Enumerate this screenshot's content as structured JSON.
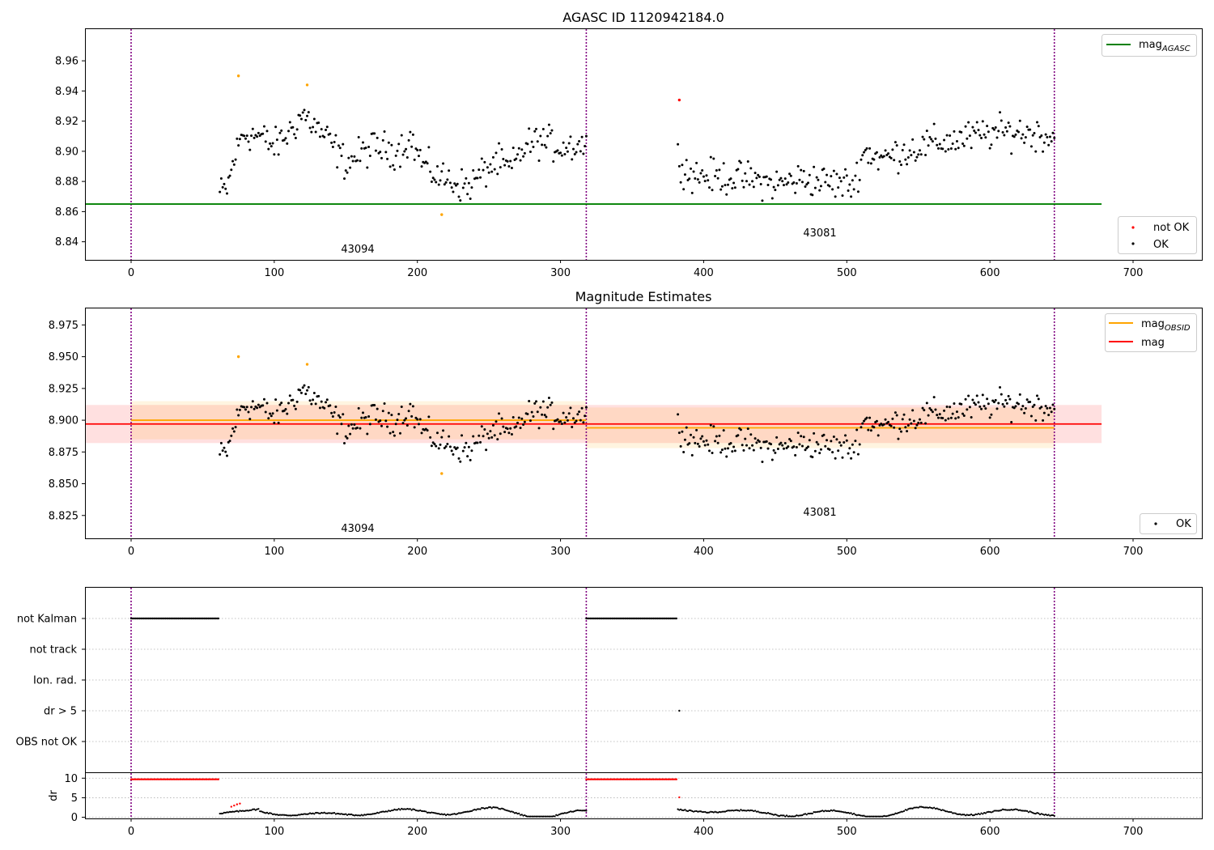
{
  "colors": {
    "ok": "#000000",
    "not_ok": "#ff0000",
    "suspect": "#ffa500",
    "mag_agasc": "#008000",
    "mag_obsid": "#ffa500",
    "mag": "#ff0000",
    "obs_boundary": "#800080",
    "grid": "#b0b0b0"
  },
  "chart_data": [
    {
      "type": "scatter",
      "panel": "top",
      "title": "AGASC ID 1120942184.0",
      "xlabel": "",
      "ylabel": "",
      "xlim": [
        -32,
        748
      ],
      "ylim": [
        8.828,
        8.981
      ],
      "xticks": [
        0,
        100,
        200,
        300,
        400,
        500,
        600,
        700
      ],
      "yticks": [
        8.84,
        8.86,
        8.88,
        8.9,
        8.92,
        8.94,
        8.96
      ],
      "ytick_labels": [
        "8.84",
        "8.86",
        "8.88",
        "8.90",
        "8.92",
        "8.94",
        "8.96"
      ],
      "obs_boundaries": [
        0,
        318,
        645
      ],
      "annotations": [
        {
          "text": "43094",
          "x": 158,
          "y": 8.835
        },
        {
          "text": "43081",
          "x": 480,
          "y": 8.845
        }
      ],
      "lines": [
        {
          "name": "mag_AGASC",
          "y": 8.865,
          "x_range": [
            -32,
            678
          ],
          "color": "#008000"
        }
      ],
      "legend_upper": {
        "position": "top-right",
        "entries": [
          {
            "name": "mag",
            "subscript": "AGASC",
            "kind": "line",
            "color": "#008000"
          }
        ]
      },
      "legend_lower": {
        "position": "bottom-right",
        "entries": [
          {
            "name": "not OK",
            "kind": "marker",
            "color": "#ff0000"
          },
          {
            "name": "OK",
            "kind": "marker",
            "color": "#000000"
          }
        ]
      },
      "series": [
        {
          "name": "OK",
          "generated": "mag_curve",
          "x_range": [
            62,
            645
          ],
          "gaps": [
            [
              319,
              381
            ]
          ],
          "color": "#000000"
        },
        {
          "name": "not OK",
          "x": [
            383
          ],
          "y": [
            8.934
          ],
          "color": "#ff0000"
        },
        {
          "name": "",
          "x": [
            75,
            123,
            217
          ],
          "y": [
            8.95,
            8.944,
            8.858
          ],
          "color": "#ffa500"
        }
      ]
    },
    {
      "type": "scatter",
      "panel": "middle",
      "title": "Magnitude Estimates",
      "xlabel": "",
      "ylabel": "",
      "xlim": [
        -32,
        748
      ],
      "ylim": [
        8.807,
        8.988
      ],
      "xticks": [
        0,
        100,
        200,
        300,
        400,
        500,
        600,
        700
      ],
      "yticks": [
        8.825,
        8.85,
        8.875,
        8.9,
        8.925,
        8.95,
        8.975
      ],
      "ytick_labels": [
        "8.825",
        "8.850",
        "8.875",
        "8.900",
        "8.925",
        "8.950",
        "8.975"
      ],
      "obs_boundaries": [
        0,
        318,
        645
      ],
      "annotations": [
        {
          "text": "43094",
          "x": 158,
          "y": 8.815
        },
        {
          "text": "43081",
          "x": 480,
          "y": 8.826
        }
      ],
      "bands": [
        {
          "name": "mag",
          "y_low": 8.882,
          "y_high": 8.912,
          "x_range": [
            -32,
            678
          ],
          "color": "#ff0000",
          "opacity": 0.12
        },
        {
          "name": "mag_OBSID 43094",
          "y_low": 8.885,
          "y_high": 8.915,
          "x_range": [
            0,
            318
          ],
          "color": "#ffa500",
          "opacity": 0.12
        },
        {
          "name": "mag_OBSID 43081",
          "y_low": 8.878,
          "y_high": 8.91,
          "x_range": [
            318,
            645
          ],
          "color": "#ffa500",
          "opacity": 0.12
        }
      ],
      "lines": [
        {
          "name": "mag_OBSID",
          "y": 8.9,
          "x_range": [
            0,
            318
          ],
          "color": "#ffa500"
        },
        {
          "name": "mag_OBSID",
          "y": 8.894,
          "x_range": [
            318,
            645
          ],
          "color": "#ffa500"
        },
        {
          "name": "mag",
          "y": 8.897,
          "x_range": [
            -32,
            678
          ],
          "color": "#ff0000"
        }
      ],
      "legend_upper": {
        "position": "top-right",
        "entries": [
          {
            "name": "mag",
            "subscript": "OBSID",
            "kind": "line",
            "color": "#ffa500"
          },
          {
            "name": "mag",
            "kind": "line",
            "color": "#ff0000"
          }
        ]
      },
      "legend_lower": {
        "position": "bottom-right",
        "entries": [
          {
            "name": "OK",
            "kind": "marker",
            "color": "#000000"
          }
        ]
      },
      "series": [
        {
          "name": "OK",
          "generated": "mag_curve",
          "x_range": [
            62,
            645
          ],
          "gaps": [
            [
              319,
              381
            ]
          ],
          "color": "#000000"
        },
        {
          "name": "",
          "x": [
            75,
            123,
            217
          ],
          "y": [
            8.95,
            8.944,
            8.858
          ],
          "color": "#ffa500"
        }
      ]
    },
    {
      "type": "scatter",
      "panel": "flags",
      "xlim": [
        -32,
        748
      ],
      "categories": [
        "not Kalman",
        "not track",
        "Ion. rad.",
        "dr > 5",
        "OBS not OK"
      ],
      "obs_boundaries": [
        0,
        318,
        645
      ],
      "grid": true,
      "series": [
        {
          "name": "not Kalman",
          "x_ranges": [
            [
              0,
              61
            ],
            [
              318,
              381
            ]
          ],
          "color": "#000000"
        },
        {
          "name": "not track",
          "x_ranges": [],
          "color": "#000000"
        },
        {
          "name": "Ion. rad.",
          "x_ranges": [],
          "color": "#000000"
        },
        {
          "name": "dr > 5",
          "x": [
            383
          ],
          "color": "#000000"
        },
        {
          "name": "OBS not OK",
          "x_ranges": [],
          "color": "#000000"
        }
      ]
    },
    {
      "type": "scatter",
      "panel": "dr",
      "xlim": [
        -32,
        748
      ],
      "ylim": [
        -0.3,
        11.3
      ],
      "ylabel": "dr",
      "xticks": [
        0,
        100,
        200,
        300,
        400,
        500,
        600,
        700
      ],
      "yticks": [
        0,
        5,
        10
      ],
      "ytick_labels": [
        "0",
        "5",
        "10"
      ],
      "grid": true,
      "obs_boundaries": [
        0,
        318,
        645
      ],
      "series": [
        {
          "name": "dr (not OK)",
          "x_ranges": [
            [
              0,
              61
            ],
            [
              318,
              381
            ]
          ],
          "y": 9.7,
          "color": "#ff0000"
        },
        {
          "name": "dr (not OK)",
          "x": [
            70,
            72,
            74,
            76,
            383
          ],
          "y": [
            2.7,
            3.0,
            3.3,
            3.5,
            5.1
          ],
          "color": "#ff0000"
        },
        {
          "name": "dr (OK)",
          "generated": "dr_curve",
          "x_range": [
            62,
            645
          ],
          "gaps": [
            [
              319,
              381
            ]
          ],
          "color": "#000000"
        }
      ]
    }
  ]
}
